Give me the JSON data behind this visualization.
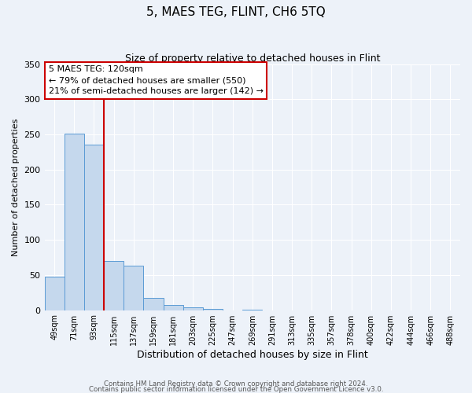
{
  "title": "5, MAES TEG, FLINT, CH6 5TQ",
  "subtitle": "Size of property relative to detached houses in Flint",
  "xlabel": "Distribution of detached houses by size in Flint",
  "ylabel": "Number of detached properties",
  "bar_labels": [
    "49sqm",
    "71sqm",
    "93sqm",
    "115sqm",
    "137sqm",
    "159sqm",
    "181sqm",
    "203sqm",
    "225sqm",
    "247sqm",
    "269sqm",
    "291sqm",
    "313sqm",
    "335sqm",
    "357sqm",
    "378sqm",
    "400sqm",
    "422sqm",
    "444sqm",
    "466sqm",
    "488sqm"
  ],
  "bar_values": [
    48,
    251,
    236,
    70,
    63,
    17,
    7,
    4,
    2,
    0,
    1,
    0,
    0,
    0,
    0,
    0,
    0,
    0,
    0,
    0,
    0
  ],
  "bar_color": "#c5d8ed",
  "bar_edge_color": "#5b9bd5",
  "vline_x_idx": 3,
  "vline_color": "#cc0000",
  "annotation_title": "5 MAES TEG: 120sqm",
  "annotation_line1": "← 79% of detached houses are smaller (550)",
  "annotation_line2": "21% of semi-detached houses are larger (142) →",
  "annotation_box_edge": "#cc0000",
  "ylim": [
    0,
    350
  ],
  "yticks": [
    0,
    50,
    100,
    150,
    200,
    250,
    300,
    350
  ],
  "footer1": "Contains HM Land Registry data © Crown copyright and database right 2024.",
  "footer2": "Contains public sector information licensed under the Open Government Licence v3.0.",
  "bg_color": "#edf2f9",
  "plot_bg_color": "#edf2f9",
  "grid_color": "#ffffff",
  "title_fontsize": 11,
  "subtitle_fontsize": 9,
  "xlabel_fontsize": 9,
  "ylabel_fontsize": 8,
  "tick_fontsize": 7,
  "ann_fontsize": 8
}
